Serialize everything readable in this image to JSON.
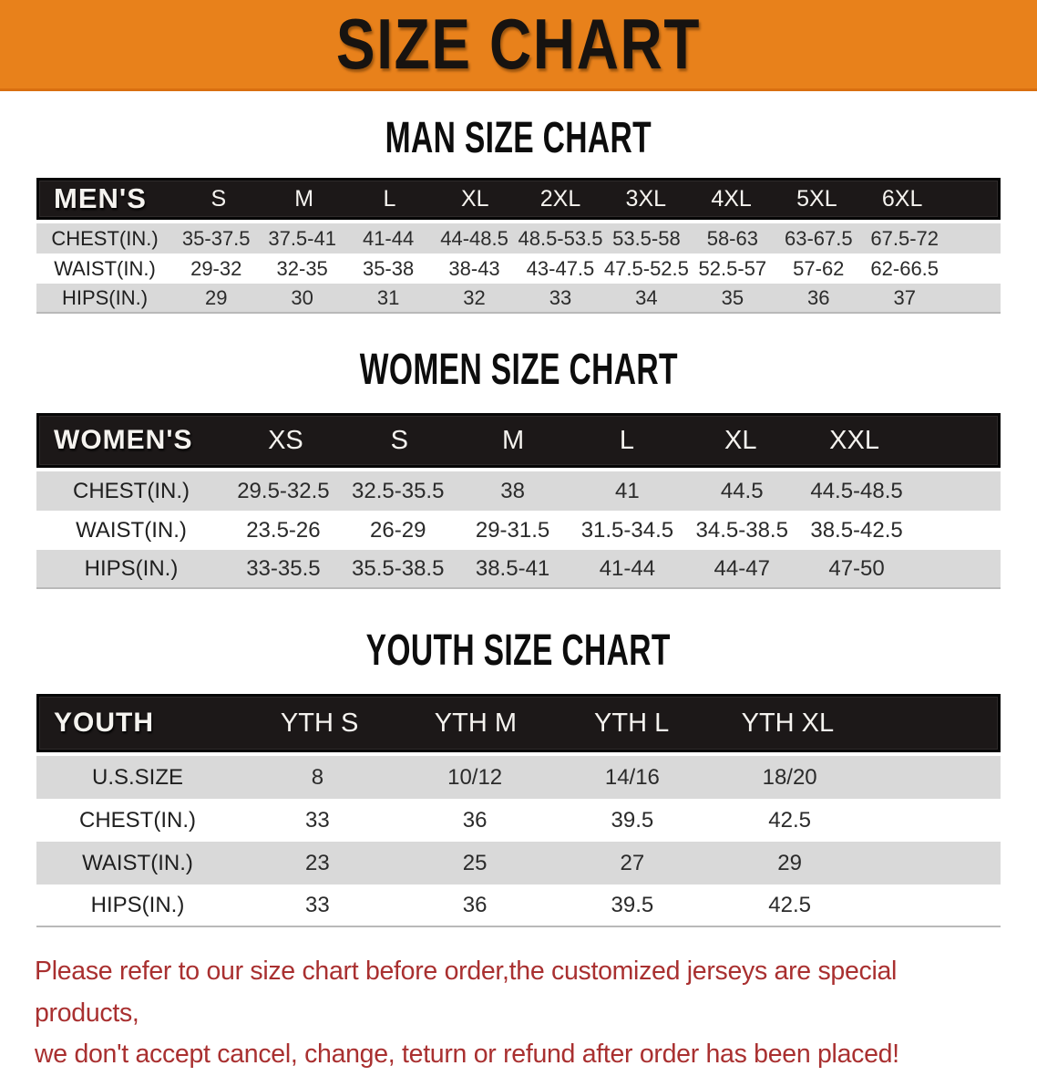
{
  "banner": {
    "title": "SIZE CHART",
    "bg_color": "#e8811b",
    "text_color": "#171310"
  },
  "colors": {
    "table_header_bg": "#1c1818",
    "table_row_shaded": "#d9d9d9",
    "footer_text": "#a93030"
  },
  "sections": [
    {
      "heading": "MAN SIZE CHART",
      "table": {
        "label": "MEN'S",
        "columns": [
          "S",
          "M",
          "L",
          "XL",
          "2XL",
          "3XL",
          "4XL",
          "5XL",
          "6XL"
        ],
        "rows": [
          {
            "label": "CHEST(IN.)",
            "values": [
              "35-37.5",
              "37.5-41",
              "41-44",
              "44-48.5",
              "48.5-53.5",
              "53.5-58",
              "58-63",
              "63-67.5",
              "67.5-72"
            ]
          },
          {
            "label": "WAIST(IN.)",
            "values": [
              "29-32",
              "32-35",
              "35-38",
              "38-43",
              "43-47.5",
              "47.5-52.5",
              "52.5-57",
              "57-62",
              "62-66.5"
            ]
          },
          {
            "label": "HIPS(IN.)",
            "values": [
              "29",
              "30",
              "31",
              "32",
              "33",
              "34",
              "35",
              "36",
              "37"
            ]
          }
        ]
      }
    },
    {
      "heading": "WOMEN SIZE CHART",
      "table": {
        "label": "WOMEN'S",
        "columns": [
          "XS",
          "S",
          "M",
          "L",
          "XL",
          "XXL"
        ],
        "rows": [
          {
            "label": "CHEST(IN.)",
            "values": [
              "29.5-32.5",
              "32.5-35.5",
              "38",
              "41",
              "44.5",
              "44.5-48.5"
            ]
          },
          {
            "label": "WAIST(IN.)",
            "values": [
              "23.5-26",
              "26-29",
              "29-31.5",
              "31.5-34.5",
              "34.5-38.5",
              "38.5-42.5"
            ]
          },
          {
            "label": "HIPS(IN.)",
            "values": [
              "33-35.5",
              "35.5-38.5",
              "38.5-41",
              "41-44",
              "44-47",
              "47-50"
            ]
          }
        ]
      }
    },
    {
      "heading": "YOUTH SIZE CHART",
      "table": {
        "label": "YOUTH",
        "columns": [
          "YTH S",
          "YTH M",
          "YTH L",
          "YTH XL"
        ],
        "rows": [
          {
            "label": "U.S.SIZE",
            "values": [
              "8",
              "10/12",
              "14/16",
              "18/20"
            ]
          },
          {
            "label": "CHEST(IN.)",
            "values": [
              "33",
              "36",
              "39.5",
              "42.5"
            ]
          },
          {
            "label": "WAIST(IN.)",
            "values": [
              "23",
              "25",
              "27",
              "29"
            ]
          },
          {
            "label": "HIPS(IN.)",
            "values": [
              "33",
              "36",
              "39.5",
              "42.5"
            ]
          }
        ]
      }
    }
  ],
  "footer": {
    "line1": "Please refer to our size chart before order,the customized jerseys are special products,",
    "line2": "we don't accept cancel, change, teturn or refund after order has been placed!"
  }
}
